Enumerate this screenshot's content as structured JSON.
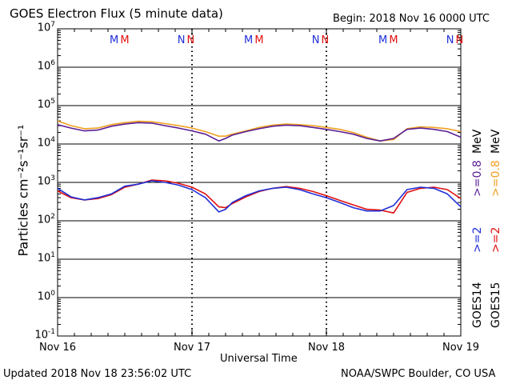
{
  "header": {
    "title": "GOES Electron Flux (5 minute data)",
    "begin": "Begin: 2018 Nov 16 0000 UTC"
  },
  "footer": {
    "updated": "Updated 2018 Nov 18 23:56:02 UTC",
    "credit": "NOAA/SWPC Boulder, CO USA"
  },
  "side_labels": {
    "goes14": "GOES14",
    "goes15": "GOES15",
    "e2_14": ">=2",
    "e2_15": ">=2",
    "e08_14": ">=0.8",
    "e08_15": ">=0.8",
    "mev_a": "MeV",
    "mev_b": "MeV"
  },
  "colors": {
    "goes14_2": "#1f2fd8",
    "goes15_2": "#e01010",
    "goes14_08": "#5a1f96",
    "goes15_08": "#f0a020",
    "marker_m": "#1f2fd8",
    "marker_n": "#e01010"
  },
  "markers": [
    {
      "day": 0.42,
      "text": "M",
      "sat": "14"
    },
    {
      "day": 0.5,
      "text": "M",
      "sat": "15"
    },
    {
      "day": 0.92,
      "text": "N",
      "sat": "14"
    },
    {
      "day": 0.99,
      "text": "N",
      "sat": "15"
    },
    {
      "day": 1.42,
      "text": "M",
      "sat": "14"
    },
    {
      "day": 1.5,
      "text": "M",
      "sat": "15"
    },
    {
      "day": 1.92,
      "text": "N",
      "sat": "14"
    },
    {
      "day": 1.99,
      "text": "N",
      "sat": "15"
    },
    {
      "day": 2.42,
      "text": "M",
      "sat": "14"
    },
    {
      "day": 2.5,
      "text": "M",
      "sat": "15"
    },
    {
      "day": 2.92,
      "text": "N",
      "sat": "14"
    },
    {
      "day": 2.99,
      "text": "N",
      "sat": "15"
    }
  ],
  "chart_data": {
    "type": "line",
    "xlabel": "Universal Time",
    "ylabel": "Particles cm⁻²s⁻¹sr⁻¹",
    "x_ticks": [
      "Nov 16",
      "Nov 17",
      "Nov 18",
      "Nov 19"
    ],
    "xlim_days": [
      0,
      3
    ],
    "y_scale": "log",
    "ylim": [
      0.1,
      10000000
    ],
    "y_tick_exponents": [
      -1,
      0,
      1,
      2,
      3,
      4,
      5,
      6,
      7
    ],
    "threshold": 1000,
    "grid": true,
    "series": [
      {
        "name": "GOES14 >=0.8 MeV",
        "x": [
          0,
          0.1,
          0.2,
          0.3,
          0.4,
          0.5,
          0.6,
          0.7,
          0.8,
          0.9,
          1.0,
          1.1,
          1.2,
          1.25,
          1.3,
          1.4,
          1.5,
          1.6,
          1.7,
          1.8,
          1.9,
          2.0,
          2.1,
          2.2,
          2.3,
          2.4,
          2.5,
          2.6,
          2.7,
          2.8,
          2.9,
          3.0
        ],
        "values": [
          32000,
          26000,
          22000,
          23000,
          29000,
          33000,
          36000,
          35000,
          30000,
          26000,
          22000,
          18000,
          12000,
          14000,
          17000,
          21000,
          25000,
          29000,
          31000,
          30000,
          27000,
          24000,
          21000,
          18000,
          14000,
          12000,
          14000,
          24000,
          26000,
          24000,
          21000,
          15000
        ]
      },
      {
        "name": "GOES15 >=0.8 MeV",
        "x": [
          0,
          0.1,
          0.2,
          0.3,
          0.4,
          0.5,
          0.6,
          0.7,
          0.8,
          0.9,
          1.0,
          1.1,
          1.2,
          1.25,
          1.3,
          1.4,
          1.5,
          1.6,
          1.7,
          1.8,
          1.9,
          2.0,
          2.1,
          2.2,
          2.3,
          2.4,
          2.5,
          2.6,
          2.7,
          2.8,
          2.9,
          3.0
        ],
        "values": [
          40000,
          30000,
          25000,
          26000,
          32000,
          36000,
          39000,
          38000,
          34000,
          30000,
          26000,
          21000,
          16000,
          16000,
          18000,
          22000,
          27000,
          31000,
          33000,
          32000,
          30000,
          27000,
          24000,
          20000,
          15000,
          12000,
          13000,
          25000,
          28000,
          27000,
          25000,
          21000
        ]
      },
      {
        "name": "GOES14 >=2 MeV",
        "x": [
          0,
          0.1,
          0.2,
          0.3,
          0.4,
          0.5,
          0.6,
          0.7,
          0.8,
          0.9,
          1.0,
          1.1,
          1.2,
          1.25,
          1.3,
          1.4,
          1.5,
          1.6,
          1.7,
          1.8,
          1.9,
          2.0,
          2.1,
          2.2,
          2.3,
          2.4,
          2.5,
          2.6,
          2.7,
          2.8,
          2.9,
          3.0
        ],
        "values": [
          700,
          420,
          350,
          400,
          500,
          800,
          900,
          1100,
          1000,
          850,
          650,
          400,
          170,
          200,
          300,
          450,
          600,
          700,
          750,
          650,
          500,
          400,
          300,
          220,
          180,
          180,
          250,
          650,
          750,
          700,
          500,
          230
        ]
      },
      {
        "name": "GOES15 >=2 MeV",
        "x": [
          0,
          0.1,
          0.2,
          0.3,
          0.4,
          0.5,
          0.6,
          0.7,
          0.8,
          0.9,
          1.0,
          1.1,
          1.2,
          1.25,
          1.3,
          1.4,
          1.5,
          1.6,
          1.7,
          1.8,
          1.9,
          2.0,
          2.1,
          2.2,
          2.3,
          2.4,
          2.5,
          2.6,
          2.7,
          2.8,
          2.9,
          3.0
        ],
        "values": [
          600,
          400,
          350,
          380,
          480,
          750,
          900,
          1150,
          1100,
          950,
          750,
          500,
          230,
          220,
          280,
          420,
          580,
          700,
          780,
          700,
          580,
          450,
          340,
          260,
          200,
          190,
          160,
          550,
          700,
          750,
          650,
          380
        ]
      }
    ]
  }
}
